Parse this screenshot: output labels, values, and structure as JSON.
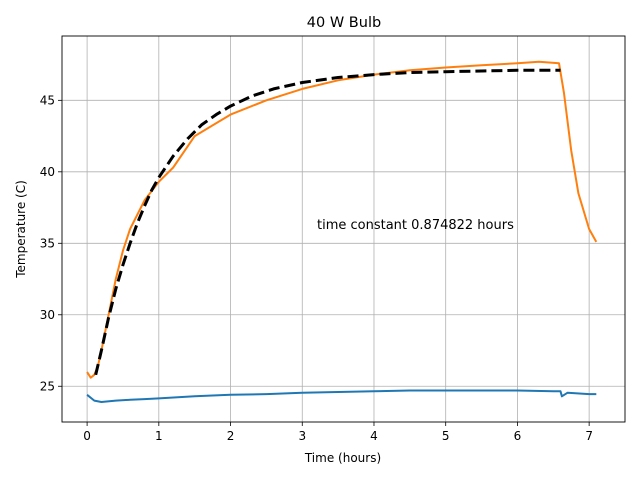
{
  "chart_data": {
    "type": "line",
    "title": "40 W Bulb",
    "xlabel": "Time (hours)",
    "ylabel": "Temperature (C)",
    "xlim": [
      -0.35,
      7.5
    ],
    "ylim": [
      22.5,
      49.5
    ],
    "xticks": [
      0,
      1,
      2,
      3,
      4,
      5,
      6,
      7
    ],
    "yticks": [
      25,
      30,
      35,
      40,
      45
    ],
    "grid": true,
    "annotation": "time constant 0.874822 hours",
    "series": [
      {
        "color": "#1f77b4",
        "style": "solid",
        "x": [
          0.0,
          0.1,
          0.2,
          0.4,
          0.6,
          0.8,
          1.0,
          1.5,
          2.0,
          2.5,
          3.0,
          3.5,
          4.0,
          4.5,
          5.0,
          5.5,
          6.0,
          6.5,
          6.6,
          6.62,
          6.7,
          7.0,
          7.1
        ],
        "y": [
          24.4,
          24.0,
          23.9,
          24.0,
          24.05,
          24.1,
          24.15,
          24.3,
          24.4,
          24.45,
          24.55,
          24.6,
          24.65,
          24.7,
          24.7,
          24.7,
          24.7,
          24.65,
          24.65,
          24.3,
          24.55,
          24.45,
          24.45
        ]
      },
      {
        "color": "#ff7f0e",
        "style": "solid",
        "x": [
          0.0,
          0.05,
          0.1,
          0.15,
          0.2,
          0.3,
          0.4,
          0.5,
          0.6,
          0.8,
          1.0,
          1.2,
          1.5,
          2.0,
          2.5,
          3.0,
          3.5,
          4.0,
          4.5,
          5.0,
          5.5,
          6.0,
          6.3,
          6.58,
          6.65,
          6.75,
          6.85,
          7.0,
          7.1
        ],
        "y": [
          26.0,
          25.6,
          25.8,
          26.4,
          27.5,
          30.0,
          32.5,
          34.5,
          36.0,
          38.0,
          39.3,
          40.3,
          42.5,
          44.0,
          45.0,
          45.8,
          46.4,
          46.8,
          47.1,
          47.3,
          47.45,
          47.6,
          47.7,
          47.6,
          45.5,
          41.5,
          38.5,
          36.0,
          35.1
        ]
      },
      {
        "color": "#000000",
        "style": "dashed",
        "x": [
          0.12,
          0.2,
          0.3,
          0.4,
          0.5,
          0.6,
          0.7,
          0.8,
          0.9,
          1.0,
          1.2,
          1.4,
          1.6,
          1.8,
          2.0,
          2.3,
          2.6,
          3.0,
          3.5,
          4.0,
          4.5,
          5.0,
          5.5,
          6.0,
          6.6
        ],
        "y": [
          25.8,
          27.5,
          29.8,
          31.8,
          33.5,
          35.0,
          36.4,
          37.6,
          38.7,
          39.6,
          41.1,
          42.3,
          43.3,
          44.0,
          44.6,
          45.3,
          45.8,
          46.25,
          46.6,
          46.8,
          46.95,
          47.0,
          47.05,
          47.1,
          47.1
        ]
      }
    ]
  }
}
